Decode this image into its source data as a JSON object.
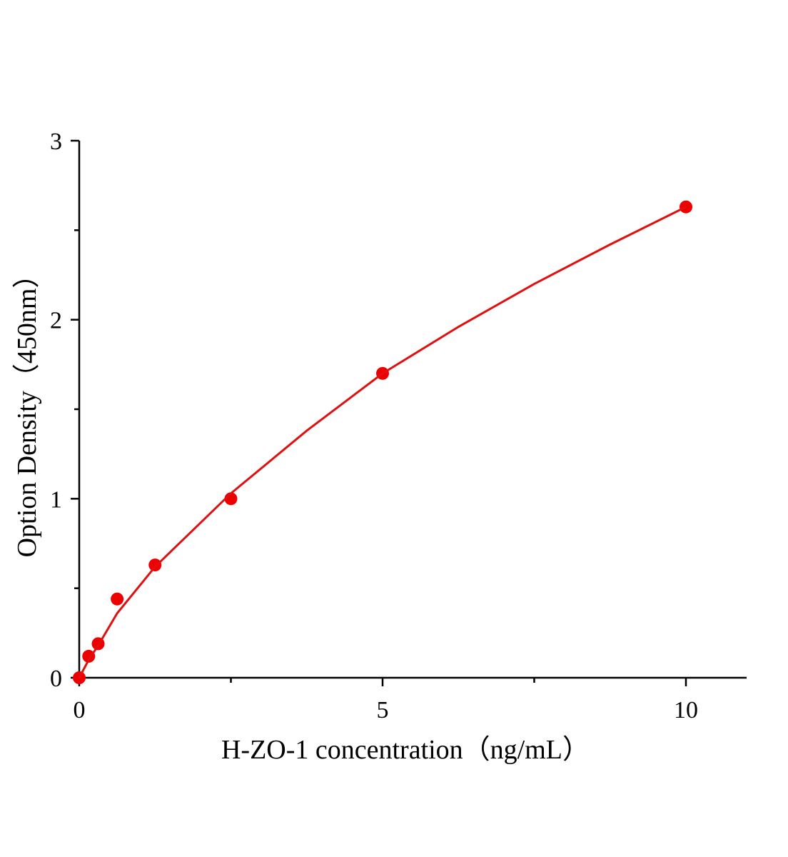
{
  "chart_data": {
    "type": "scatter",
    "x_label": "H-ZO-1 concentration（ng/mL）",
    "y_label": "Option Density（450nm）",
    "xlim": [
      0,
      11
    ],
    "ylim": [
      0,
      3
    ],
    "xticks": [
      0,
      5,
      10
    ],
    "yticks": [
      0,
      1,
      2,
      3
    ],
    "xminorticks": [
      2.5,
      7.5
    ],
    "yminorticks": [
      0.5,
      1.5,
      2.5
    ],
    "grid": false,
    "series": [
      {
        "kind": "markers",
        "color": "#ee0000",
        "x": [
          0,
          0.156,
          0.312,
          0.625,
          1.25,
          2.5,
          5,
          10
        ],
        "values": [
          0,
          0.12,
          0.19,
          0.44,
          0.63,
          1.0,
          1.7,
          2.63
        ]
      },
      {
        "kind": "line",
        "color": "#e01010",
        "x": [
          0,
          0.156,
          0.312,
          0.625,
          1.25,
          2.5,
          3.75,
          5,
          6.25,
          7.5,
          8.75,
          10
        ],
        "values": [
          0,
          0.1,
          0.18,
          0.36,
          0.62,
          1.03,
          1.38,
          1.7,
          1.96,
          2.2,
          2.42,
          2.63
        ]
      }
    ]
  }
}
